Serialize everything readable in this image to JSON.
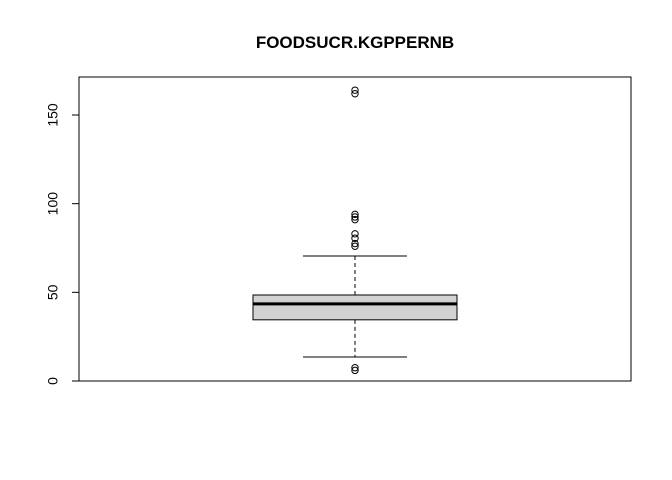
{
  "chart_data": {
    "type": "boxplot",
    "title": "FOODSUCR.KGPPERNB",
    "xlabel": "",
    "ylabel": "",
    "ylim": [
      0,
      170
    ],
    "y_ticks": [
      0,
      50,
      100,
      150
    ],
    "y_tick_labels": [
      "0",
      "50",
      "100",
      "150"
    ],
    "box": {
      "whisker_low": 13.5,
      "q1": 34.5,
      "median": 43.5,
      "q3": 48.5,
      "whisker_high": 70.5,
      "box_fill": "#d3d3d3"
    },
    "outliers": [
      6,
      7.5,
      76,
      77.5,
      80.5,
      83,
      91,
      92.5,
      94,
      162,
      164
    ]
  }
}
